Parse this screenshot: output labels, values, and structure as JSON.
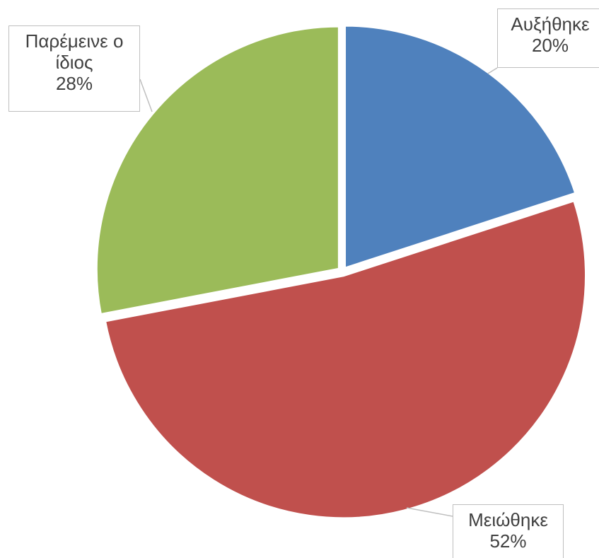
{
  "chart_data": {
    "type": "pie",
    "categories": [
      "Αυξήθηκε",
      "Μειώθηκε",
      "Παρέμεινε ο ίδιος"
    ],
    "values": [
      20,
      52,
      28
    ],
    "value_labels": [
      "20%",
      "52%",
      "28%"
    ],
    "colors": [
      "#4f81bd",
      "#c0504d",
      "#9bbb59"
    ]
  }
}
